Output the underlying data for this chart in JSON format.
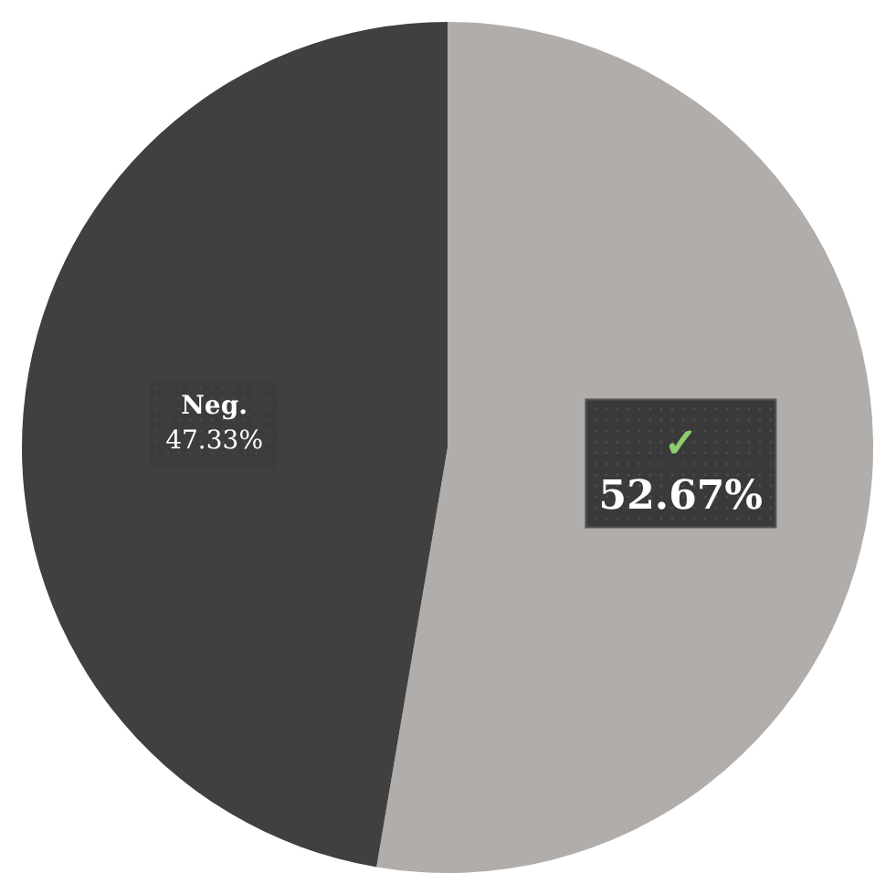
{
  "chart_data": {
    "type": "pie",
    "categories": [
      "✓",
      "Neg."
    ],
    "values": [
      52.67,
      47.33
    ],
    "colors": [
      "#b0adab",
      "#404040"
    ],
    "value_labels": [
      "52.67%",
      "47.33%"
    ]
  }
}
